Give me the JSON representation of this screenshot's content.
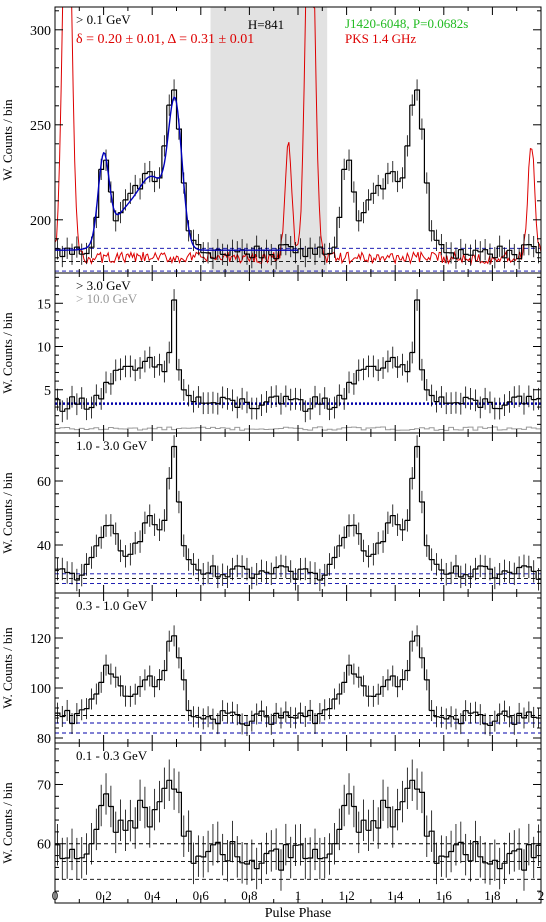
{
  "figure": {
    "xlabel": "Pulse Phase",
    "xlim": [
      0,
      2
    ],
    "xticks": [
      0,
      0.2,
      0.4,
      0.6,
      0.8,
      1,
      1.2,
      1.4,
      1.6,
      1.8,
      2
    ],
    "xtick_labels": [
      "0",
      "0.2",
      "0.4",
      "0.6",
      "0.8",
      "1",
      "1.2",
      "1.4",
      "1.6",
      "1.8",
      "2"
    ]
  },
  "colors": {
    "histogram": "#000000",
    "radio": "#dd0000",
    "fit": "#0000bb",
    "background_dashed_blue": "#0000aa",
    "background_dashed_black": "#000000",
    "offpulse_region": "#e2e2e2",
    "pulsar_label": "#22bb22",
    "radio_label": "#dd0000",
    "secondary_energy": "#999999"
  },
  "chart_data": [
    {
      "type": "histogram",
      "panel": "> 0.1 GeV",
      "energy_label": "> 0.1 GeV",
      "fit_label": "δ = 0.20 ± 0.01, Δ = 0.31 ± 0.01",
      "offpulse_label": "H=841",
      "pulsar_label": "J1420-6048, P=0.0682s",
      "radio_label": "PKS 1.4 GHz",
      "ylabel": "W. Counts / bin",
      "ylim": [
        172,
        312
      ],
      "yticks": [
        200,
        250,
        300
      ],
      "offpulse_phase": [
        0.64,
        1.12
      ],
      "background_levels": [
        {
          "value": 178,
          "style": "black-dashed"
        },
        {
          "value": 185,
          "style": "blue-dashed"
        },
        {
          "value": 173,
          "style": "blue-dashed"
        }
      ],
      "shape": {
        "base": 183,
        "noise": 4,
        "peaks": [
          {
            "center": 0.2,
            "amp": 42,
            "width": 0.022
          },
          {
            "center": 0.3,
            "amp": 20,
            "width": 0.07
          },
          {
            "center": 0.4,
            "amp": 30,
            "width": 0.06
          },
          {
            "center": 0.49,
            "amp": 72,
            "width": 0.032
          }
        ]
      },
      "fit": {
        "base": 184,
        "peaks": [
          {
            "center": 0.2,
            "amp": 44,
            "width": 0.022
          },
          {
            "center": 0.3,
            "amp": 20,
            "width": 0.07
          },
          {
            "center": 0.41,
            "amp": 32,
            "width": 0.055
          },
          {
            "center": 0.495,
            "amp": 70,
            "width": 0.028
          }
        ]
      },
      "radio": {
        "base": 180,
        "noise": 3,
        "peaks": [
          {
            "center": 0.05,
            "amp": 115,
            "width": 0.018
          },
          {
            "center": 0.96,
            "amp": 60,
            "width": 0.014
          },
          {
            "center": 1.05,
            "amp": 115,
            "width": 0.018
          }
        ]
      }
    },
    {
      "type": "histogram",
      "panel": "> 3.0 GeV",
      "energy_label": "> 3.0 GeV",
      "secondary_label": "> 10.0 GeV",
      "ylabel": "W. Counts / bin",
      "ylim": [
        0,
        18.5
      ],
      "yticks": [
        5,
        10,
        15
      ],
      "background_levels": [
        {
          "value": 3.4,
          "style": "blue-dotted-thick"
        }
      ],
      "shape": {
        "base": 3.4,
        "noise": 0.9,
        "peaks": [
          {
            "center": 0.25,
            "amp": 2.5,
            "width": 0.05
          },
          {
            "center": 0.4,
            "amp": 4.5,
            "width": 0.08
          },
          {
            "center": 0.49,
            "amp": 10,
            "width": 0.012
          }
        ]
      },
      "secondary": {
        "base": 0.5,
        "noise": 0.2
      }
    },
    {
      "type": "histogram",
      "panel": "1.0 - 3.0 GeV",
      "energy_label": "1.0 - 3.0 GeV",
      "ylabel": "W. Counts / bin",
      "ylim": [
        25,
        75
      ],
      "yticks": [
        40,
        60
      ],
      "background_levels": [
        {
          "value": 31,
          "style": "blue-dashed"
        },
        {
          "value": 29.5,
          "style": "black-dashed"
        },
        {
          "value": 28,
          "style": "blue-dashed"
        }
      ],
      "shape": {
        "base": 31,
        "noise": 2.5,
        "peaks": [
          {
            "center": 0.22,
            "amp": 14,
            "width": 0.04
          },
          {
            "center": 0.4,
            "amp": 16,
            "width": 0.07
          },
          {
            "center": 0.49,
            "amp": 32,
            "width": 0.02
          }
        ]
      }
    },
    {
      "type": "histogram",
      "panel": "0.3 - 1.0 GeV",
      "energy_label": "0.3 - 1.0 GeV",
      "ylabel": "W. Counts / bin",
      "ylim": [
        78,
        138
      ],
      "yticks": [
        80,
        100,
        120
      ],
      "background_levels": [
        {
          "value": 89,
          "style": "black-dashed"
        },
        {
          "value": 86,
          "style": "blue-dashed"
        },
        {
          "value": 82,
          "style": "blue-dashed"
        }
      ],
      "shape": {
        "base": 88,
        "noise": 3,
        "peaks": [
          {
            "center": 0.22,
            "amp": 20,
            "width": 0.045
          },
          {
            "center": 0.38,
            "amp": 14,
            "width": 0.06
          },
          {
            "center": 0.49,
            "amp": 33,
            "width": 0.028
          }
        ]
      }
    },
    {
      "type": "histogram",
      "panel": "0.1 - 0.3 GeV",
      "energy_label": "0.1 - 0.3 GeV",
      "ylabel": "W. Counts / bin",
      "ylim": [
        50,
        77
      ],
      "yticks": [
        60,
        70
      ],
      "background_levels": [
        {
          "value": 60,
          "style": "black-dashed"
        },
        {
          "value": 57,
          "style": "black-dashed"
        },
        {
          "value": 54,
          "style": "black-dashed"
        }
      ],
      "shape": {
        "base": 58,
        "noise": 2.5,
        "peaks": [
          {
            "center": 0.21,
            "amp": 8,
            "width": 0.03
          },
          {
            "center": 0.36,
            "amp": 7,
            "width": 0.08
          },
          {
            "center": 0.48,
            "amp": 10,
            "width": 0.04
          }
        ]
      }
    }
  ]
}
